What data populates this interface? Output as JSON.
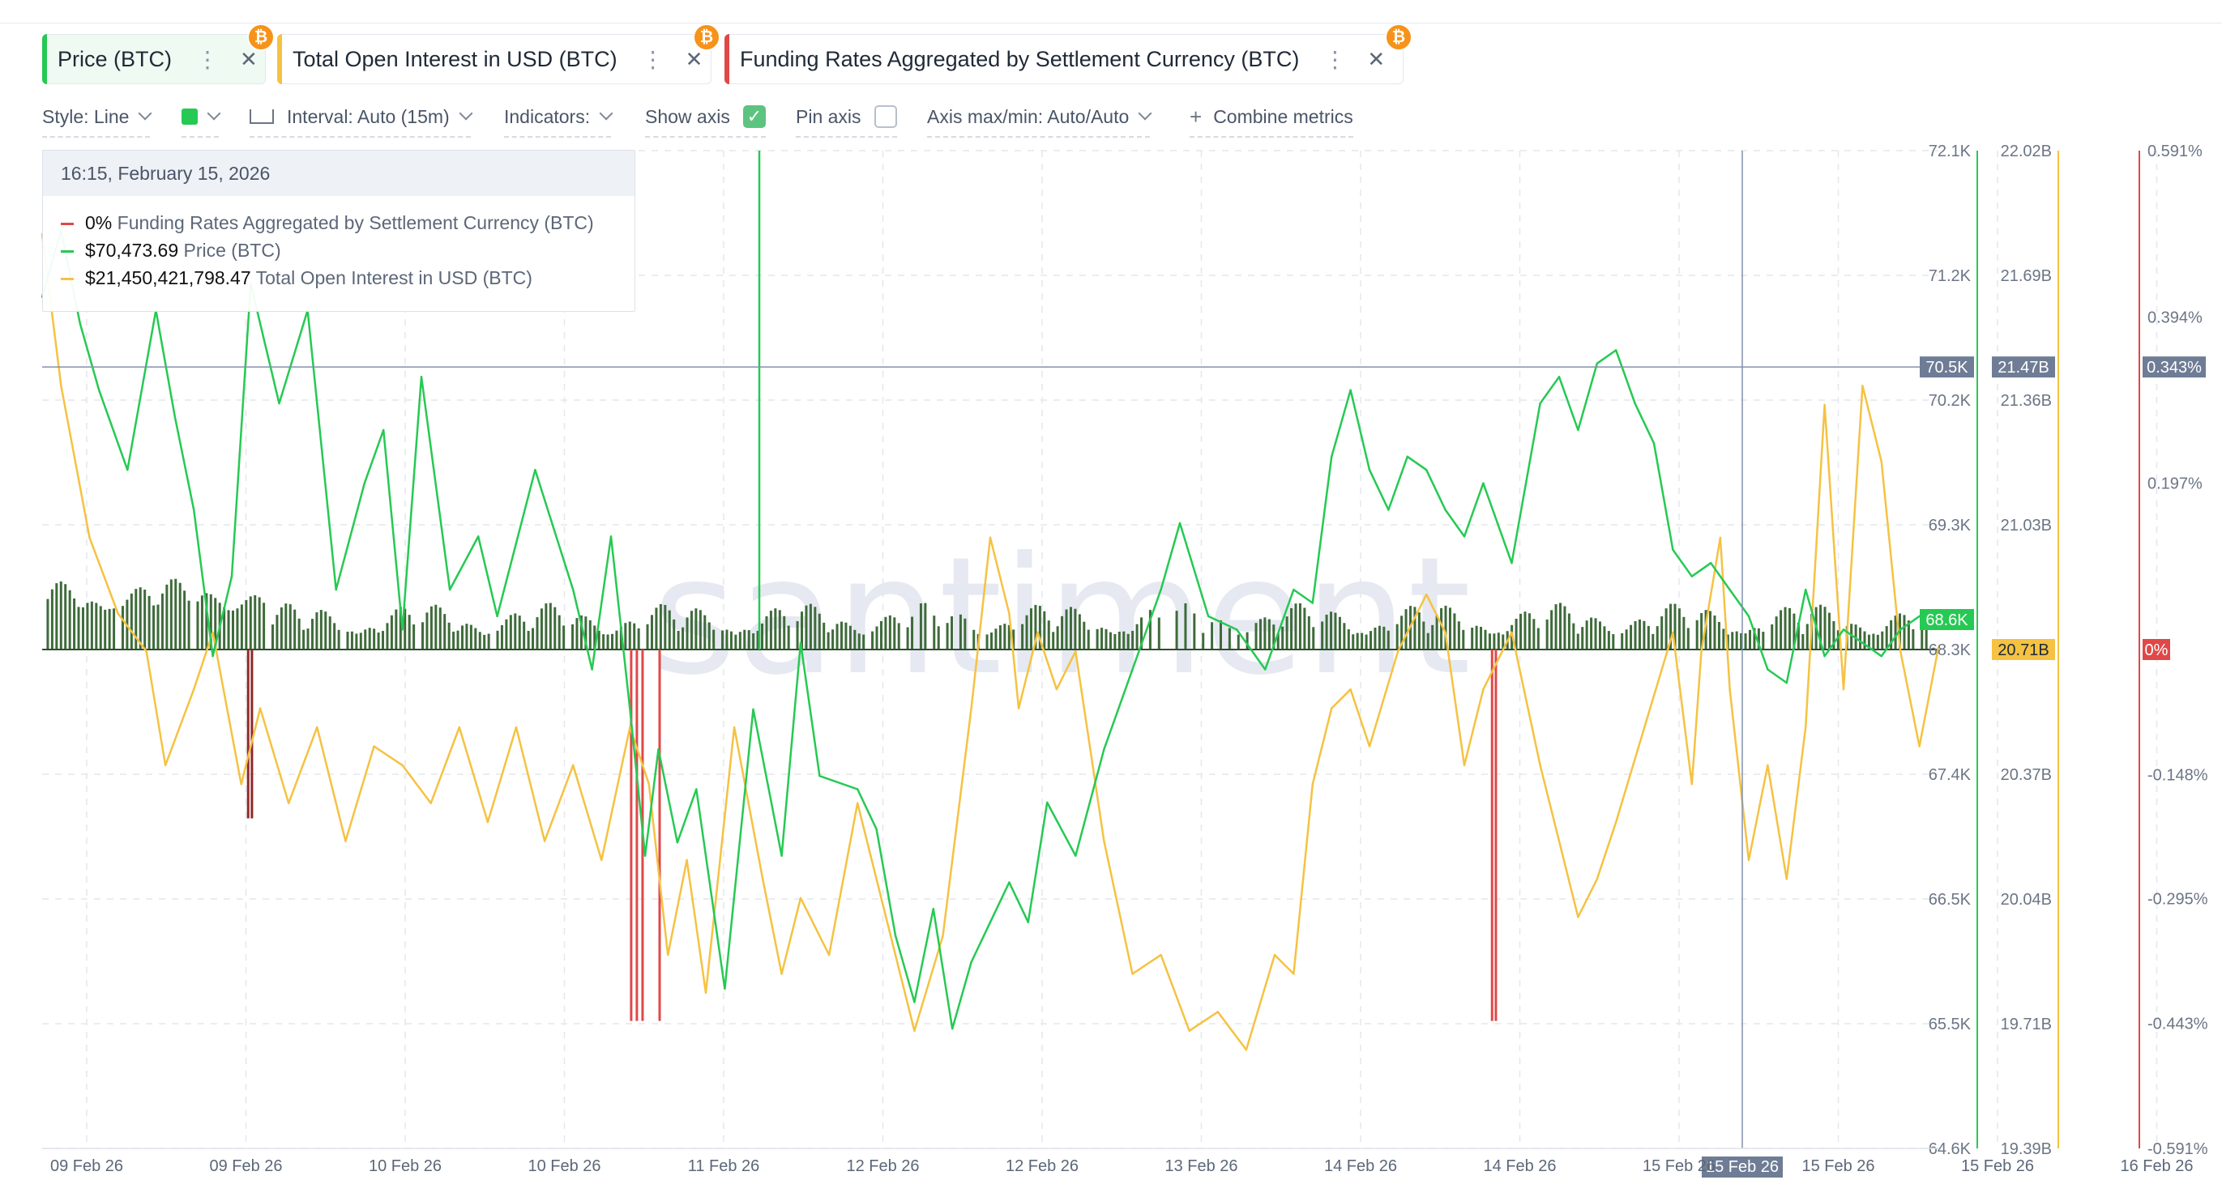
{
  "tabs": [
    {
      "label": "Price (BTC)",
      "color": "#26c953",
      "coin": "₿"
    },
    {
      "label": "Total Open Interest in USD (BTC)",
      "color": "#f5c242",
      "coin": "₿"
    },
    {
      "label": "Funding Rates Aggregated by Settlement Currency (BTC)",
      "color": "#e04848",
      "coin": "₿"
    }
  ],
  "toolbar": {
    "style": "Style: Line",
    "interval": "Interval: Auto (15m)",
    "indicators": "Indicators:",
    "show_axis": "Show axis",
    "pin_axis": "Pin axis",
    "axis_maxmin": "Axis max/min: Auto/Auto",
    "combine": "Combine metrics"
  },
  "tooltip": {
    "date": "16:15, February 15, 2026",
    "rows": [
      {
        "value": "0%",
        "name": "Funding Rates Aggregated by Settlement Currency (BTC)",
        "color": "#e04848"
      },
      {
        "value": "$70,473.69",
        "name": "Price (BTC)",
        "color": "#26c953"
      },
      {
        "value": "$21,450,421,798.47",
        "name": "Total Open Interest in USD (BTC)",
        "color": "#f5c242"
      }
    ]
  },
  "watermark": "santiment",
  "chart_data": {
    "type": "line",
    "x_range": [
      "2026-02-09",
      "2026-02-16"
    ],
    "x_ticks": [
      "09 Feb 26",
      "09 Feb 26",
      "10 Feb 26",
      "10 Feb 26",
      "11 Feb 26",
      "12 Feb 26",
      "12 Feb 26",
      "13 Feb 26",
      "14 Feb 26",
      "14 Feb 26",
      "15 Feb 26",
      "15 Feb 26",
      "15 Feb 26",
      "16 Feb 26"
    ],
    "crosshair_x_label": "15 Feb 26",
    "axes": [
      {
        "name": "Price (BTC)",
        "color": "#26c953",
        "ticks": [
          "72.1K",
          "71.2K",
          "70.2K",
          "69.3K",
          "68.3K",
          "67.4K",
          "66.5K",
          "65.5K",
          "64.6K"
        ],
        "ylim": [
          64600,
          72100
        ],
        "labels": [
          {
            "text": "70.5K",
            "value": 70473.69,
            "style": "crosshair"
          },
          {
            "text": "68.6K",
            "value": 68600,
            "style": "last"
          }
        ]
      },
      {
        "name": "Total Open Interest in USD (BTC)",
        "color": "#f5c242",
        "ticks": [
          "22.02B",
          "21.69B",
          "21.36B",
          "21.03B",
          "20.71B",
          "20.37B",
          "20.04B",
          "19.71B",
          "19.39B"
        ],
        "ylim": [
          19.39,
          22.02
        ],
        "labels": [
          {
            "text": "21.47B",
            "value": 21.45,
            "style": "crosshair"
          },
          {
            "text": "20.71B",
            "value": 20.71,
            "style": "last"
          }
        ]
      },
      {
        "name": "Funding Rates Aggregated by Settlement Currency (BTC)",
        "color": "#e04848",
        "ticks": [
          "0.591%",
          "0.394%",
          "0.197%",
          "0%",
          "-0.148%",
          "-0.295%",
          "-0.443%",
          "-0.591%"
        ],
        "ylim": [
          -0.591,
          0.591
        ],
        "labels": [
          {
            "text": "0.343%",
            "value": 0.343,
            "style": "crosshair"
          },
          {
            "text": "0%",
            "value": 0,
            "style": "last"
          }
        ]
      }
    ],
    "series": [
      {
        "name": "Price (BTC)",
        "color": "#26c953",
        "x": [
          0,
          0.01,
          0.02,
          0.03,
          0.045,
          0.06,
          0.07,
          0.08,
          0.09,
          0.1,
          0.11,
          0.125,
          0.14,
          0.155,
          0.17,
          0.18,
          0.19,
          0.2,
          0.215,
          0.23,
          0.24,
          0.26,
          0.28,
          0.29,
          0.3,
          0.31,
          0.318,
          0.325,
          0.335,
          0.345,
          0.36,
          0.375,
          0.39,
          0.4,
          0.41,
          0.43,
          0.44,
          0.45,
          0.46,
          0.47,
          0.48,
          0.49,
          0.5,
          0.51,
          0.52,
          0.53,
          0.545,
          0.56,
          0.575,
          0.59,
          0.6,
          0.615,
          0.63,
          0.645,
          0.66,
          0.67,
          0.68,
          0.69,
          0.7,
          0.71,
          0.72,
          0.73,
          0.74,
          0.75,
          0.76,
          0.775,
          0.79,
          0.8,
          0.81,
          0.82,
          0.83,
          0.84,
          0.85,
          0.86,
          0.87,
          0.88,
          0.89,
          0.9,
          0.91,
          0.92,
          0.93,
          0.94,
          0.95,
          0.96,
          0.97,
          0.98,
          0.99,
          1.0
        ],
        "y": [
          71000,
          71500,
          70800,
          70300,
          69700,
          70900,
          70100,
          69400,
          68300,
          68900,
          71100,
          70200,
          70900,
          68800,
          69600,
          70000,
          68500,
          70400,
          68800,
          69200,
          68600,
          69700,
          68800,
          68200,
          69200,
          67900,
          66800,
          67600,
          66900,
          67300,
          65800,
          67900,
          66800,
          68400,
          67400,
          67300,
          67000,
          66200,
          65700,
          66400,
          65500,
          66000,
          66300,
          66600,
          66300,
          67200,
          66800,
          67600,
          68200,
          68800,
          69300,
          68600,
          68500,
          68200,
          68800,
          68700,
          69800,
          70300,
          69700,
          69400,
          69800,
          69700,
          69400,
          69200,
          69600,
          69000,
          70200,
          70400,
          70000,
          70500,
          70600,
          70200,
          69900,
          69100,
          68900,
          69000,
          68800,
          68600,
          68200,
          68100,
          68800,
          68300,
          68500,
          68400,
          68300,
          68500,
          68600,
          68600
        ]
      },
      {
        "name": "Total Open Interest in USD (BTC)",
        "color": "#f5c242",
        "x": [
          0,
          0.01,
          0.025,
          0.04,
          0.055,
          0.065,
          0.08,
          0.09,
          0.105,
          0.115,
          0.13,
          0.145,
          0.16,
          0.175,
          0.19,
          0.205,
          0.22,
          0.235,
          0.25,
          0.265,
          0.28,
          0.295,
          0.31,
          0.32,
          0.33,
          0.34,
          0.35,
          0.365,
          0.38,
          0.39,
          0.4,
          0.415,
          0.43,
          0.445,
          0.46,
          0.475,
          0.49,
          0.5,
          0.51,
          0.515,
          0.525,
          0.535,
          0.545,
          0.56,
          0.575,
          0.59,
          0.605,
          0.62,
          0.635,
          0.65,
          0.66,
          0.67,
          0.68,
          0.69,
          0.7,
          0.715,
          0.73,
          0.74,
          0.75,
          0.76,
          0.775,
          0.79,
          0.8,
          0.81,
          0.82,
          0.83,
          0.845,
          0.86,
          0.87,
          0.875,
          0.88,
          0.885,
          0.89,
          0.9,
          0.91,
          0.92,
          0.93,
          0.94,
          0.95,
          0.96,
          0.97,
          0.98,
          0.99,
          1.0
        ],
        "y": [
          21.8,
          21.4,
          21.0,
          20.8,
          20.7,
          20.4,
          20.6,
          20.75,
          20.35,
          20.55,
          20.3,
          20.5,
          20.2,
          20.45,
          20.4,
          20.3,
          20.5,
          20.25,
          20.5,
          20.2,
          20.4,
          20.15,
          20.5,
          20.35,
          19.9,
          20.15,
          19.8,
          20.5,
          20.1,
          19.85,
          20.05,
          19.9,
          20.3,
          20.0,
          19.7,
          19.95,
          20.55,
          21.0,
          20.8,
          20.55,
          20.75,
          20.6,
          20.7,
          20.2,
          19.85,
          19.9,
          19.7,
          19.75,
          19.65,
          19.9,
          19.85,
          20.35,
          20.55,
          20.6,
          20.45,
          20.7,
          20.85,
          20.75,
          20.4,
          20.6,
          20.75,
          20.4,
          20.2,
          20.0,
          20.1,
          20.25,
          20.5,
          20.75,
          20.35,
          20.7,
          20.85,
          21.0,
          20.6,
          20.15,
          20.4,
          20.1,
          20.5,
          21.35,
          20.6,
          21.4,
          21.2,
          20.7,
          20.45,
          20.71
        ]
      },
      {
        "name": "Funding Rates Aggregated by Settlement Currency (BTC)",
        "color": "#e04848",
        "x": [
          0.108,
          0.11,
          0.31,
          0.313,
          0.316,
          0.325,
          0.764,
          0.766
        ],
        "y": [
          -0.2,
          -0.2,
          -0.44,
          -0.44,
          -0.44,
          -0.44,
          -0.44,
          -0.44
        ]
      }
    ],
    "grid": true,
    "legend": "top-left"
  }
}
